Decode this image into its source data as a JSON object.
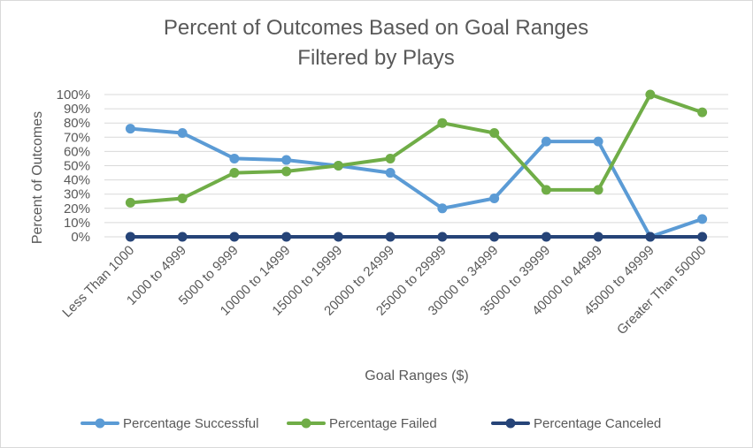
{
  "chart_data": {
    "type": "line",
    "title": [
      "Percent of Outcomes Based on Goal Ranges",
      "Filtered by Plays"
    ],
    "xlabel": "Goal Ranges ($)",
    "ylabel": "Percent of Outcomes",
    "ylim": [
      0,
      100
    ],
    "yticks": [
      "0%",
      "10%",
      "20%",
      "30%",
      "40%",
      "50%",
      "60%",
      "70%",
      "80%",
      "90%",
      "100%"
    ],
    "grid": true,
    "legend_position": "bottom",
    "categories": [
      "Less Than 1000",
      "1000 to 4999",
      "5000 to 9999",
      "10000 to 14999",
      "15000 to 19999",
      "20000 to 24999",
      "25000 to 29999",
      "30000 to 34999",
      "35000 to 39999",
      "40000 to 44999",
      "45000 to 49999",
      "Greater Than 50000"
    ],
    "series": [
      {
        "name": "Percentage Successful",
        "color": "#5b9bd5",
        "values": [
          76,
          73,
          55,
          54,
          50,
          45,
          20,
          27,
          67,
          67,
          0,
          12.5
        ]
      },
      {
        "name": "Percentage Failed",
        "color": "#70ad47",
        "values": [
          24,
          27,
          45,
          46,
          50,
          55,
          80,
          73,
          33,
          33,
          100,
          87.5
        ]
      },
      {
        "name": "Percentage Canceled",
        "color": "#264478",
        "values": [
          0,
          0,
          0,
          0,
          0,
          0,
          0,
          0,
          0,
          0,
          0,
          0
        ]
      }
    ]
  }
}
